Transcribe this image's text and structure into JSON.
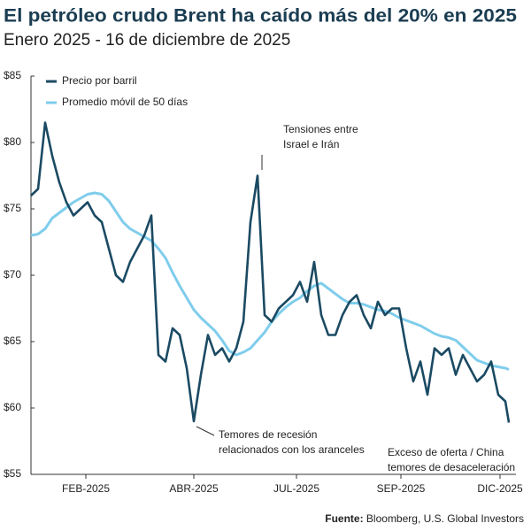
{
  "chart_data": {
    "type": "line",
    "title": "El petróleo crudo Brent ha caído más del 20% en 2025",
    "subtitle": "Enero 2025 -  16 de diciembre de 2025",
    "source_label": "Fuente:",
    "source": "Bloomberg, U.S. Global Investors",
    "annotations": [
      "Tensiones entre\nIsrael e Irán",
      "Temores de recesión\nrelacionados con los aranceles",
      "Exceso de oferta / China\ntemores de desaceleración"
    ],
    "legend": "upper left",
    "grid": false,
    "x": [
      0,
      4,
      8,
      12,
      16,
      20,
      24,
      28,
      32,
      36,
      40,
      44,
      48,
      52,
      56,
      60,
      64,
      68,
      72,
      76,
      80,
      84,
      88,
      92,
      96,
      100,
      104,
      108,
      112,
      116,
      120,
      124,
      128,
      132,
      136,
      140,
      144,
      148,
      152,
      156,
      160,
      164,
      168,
      172,
      176,
      180,
      184,
      188,
      192,
      196,
      200,
      204,
      208,
      212,
      216,
      220,
      224,
      228,
      232,
      236,
      240,
      244,
      248,
      252,
      256,
      260,
      264,
      268,
      270
    ],
    "xlim": [
      0,
      274
    ],
    "xticks": [
      {
        "value": 31,
        "label": "FEB-2025"
      },
      {
        "value": 92,
        "label": "ABR-2025"
      },
      {
        "value": 150,
        "label": "JUL-2025"
      },
      {
        "value": 209,
        "label": "SEP-2025"
      },
      {
        "value": 265,
        "label": "DIC-2025"
      }
    ],
    "ylim": [
      55,
      85
    ],
    "yticks": [
      {
        "value": 55,
        "label": "$55"
      },
      {
        "value": 60,
        "label": "$60"
      },
      {
        "value": 65,
        "label": "$65"
      },
      {
        "value": 70,
        "label": "$70"
      },
      {
        "value": 75,
        "label": "$75"
      },
      {
        "value": 80,
        "label": "$80"
      },
      {
        "value": 85,
        "label": "$85"
      }
    ],
    "series": [
      {
        "name": "Precio por barril",
        "color": "#1b4a63",
        "values": [
          76,
          76.5,
          81.5,
          79,
          77,
          75.5,
          74.5,
          75,
          75.5,
          74.5,
          74,
          72,
          70,
          69.5,
          71,
          72,
          73,
          74.5,
          64,
          63.5,
          66,
          65.5,
          63,
          59,
          62.5,
          65.5,
          64,
          64.5,
          63.5,
          64.5,
          66.5,
          74,
          77.5,
          67,
          66.5,
          67.5,
          68,
          68.5,
          69.5,
          68,
          71,
          67,
          65.5,
          65.5,
          67,
          68,
          68.5,
          67,
          66,
          68,
          67,
          67.5,
          67.5,
          64.5,
          62,
          63.5,
          61,
          64.5,
          64,
          64.5,
          62.5,
          64,
          63,
          62,
          62.5,
          63.5,
          61,
          60.5,
          58.9
        ]
      },
      {
        "name": "Promedio móvil de 50 días",
        "color": "#7fcdec",
        "values": [
          73,
          73.1,
          73.5,
          74.3,
          74.7,
          75.1,
          75.5,
          75.8,
          76.1,
          76.2,
          76.1,
          75.6,
          74.8,
          74,
          73.5,
          73.2,
          72.9,
          72.6,
          72,
          71.3,
          70.2,
          69.2,
          68.3,
          67.4,
          66.8,
          66.3,
          65.8,
          65.1,
          64.3,
          64,
          64.2,
          64.5,
          65.1,
          65.7,
          66.5,
          67.1,
          67.6,
          68,
          68.3,
          68.8,
          69.2,
          69.4,
          69,
          68.6,
          68.2,
          67.9,
          67.9,
          67.8,
          67.6,
          67.4,
          67.3,
          67.1,
          66.8,
          66.6,
          66.4,
          66.2,
          65.9,
          65.6,
          65.4,
          65.3,
          65.1,
          64.6,
          64.1,
          63.6,
          63.4,
          63.2,
          63.1,
          63,
          62.9
        ]
      }
    ]
  }
}
